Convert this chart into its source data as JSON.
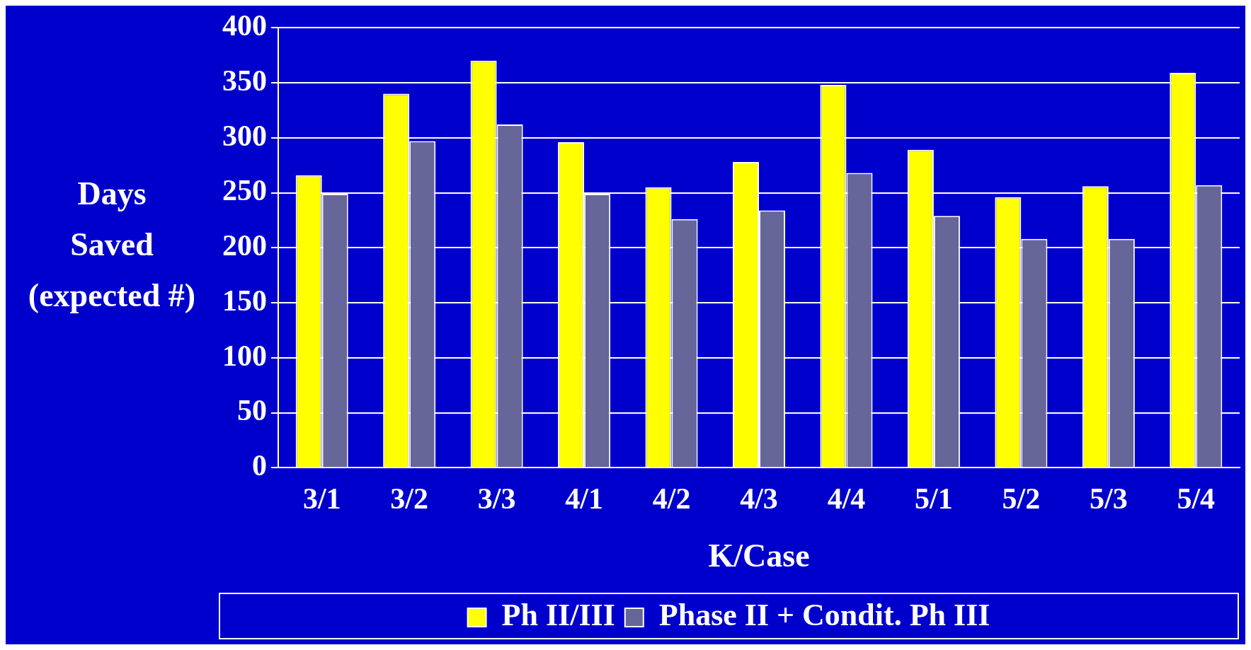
{
  "chart_data": {
    "type": "bar",
    "xlabel": "K/Case",
    "ylabel": "Days Saved (expected #)",
    "categories": [
      "3/1",
      "3/2",
      "3/3",
      "4/1",
      "4/2",
      "4/3",
      "4/4",
      "5/1",
      "5/2",
      "5/3",
      "5/4"
    ],
    "series": [
      {
        "name": "Ph II/III",
        "color": "#ffff00",
        "values": [
          266,
          340,
          370,
          296,
          255,
          278,
          348,
          289,
          246,
          256,
          359
        ]
      },
      {
        "name": "Phase II + Condit. Ph III",
        "color": "#666699",
        "values": [
          249,
          297,
          312,
          249,
          226,
          234,
          268,
          229,
          208,
          208,
          257
        ]
      }
    ],
    "ylim": [
      0,
      400
    ],
    "yticks": [
      0,
      50,
      100,
      150,
      200,
      250,
      300,
      350,
      400
    ],
    "grid": "y",
    "legend": "bottom"
  }
}
